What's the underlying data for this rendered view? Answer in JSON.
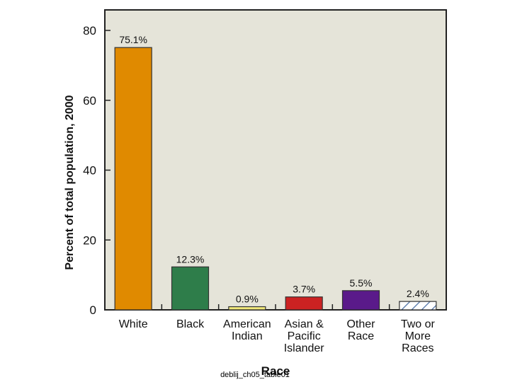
{
  "slide": {
    "caption": "deblij_ch05_table01"
  },
  "chart_data": {
    "type": "bar",
    "title": "",
    "xlabel": "Race",
    "ylabel": "Percent of total population, 2000",
    "ylim": [
      0,
      80
    ],
    "yticks": [
      0,
      20,
      40,
      60,
      80
    ],
    "grid": false,
    "plot_background": "#e5e4d9",
    "categories": [
      [
        "White"
      ],
      [
        "Black"
      ],
      [
        "American",
        "Indian"
      ],
      [
        "Asian &",
        "Pacific",
        "Islander"
      ],
      [
        "Other",
        "Race"
      ],
      [
        "Two or",
        "More",
        "Races"
      ]
    ],
    "values": [
      75.1,
      12.3,
      0.9,
      3.7,
      5.5,
      2.4
    ],
    "value_labels": [
      "75.1%",
      "12.3%",
      "0.9%",
      "3.7%",
      "5.5%",
      "2.4%"
    ],
    "colors": [
      "#e08a00",
      "#2e7d4a",
      "#f0e87a",
      "#cc2222",
      "#5a1a8a",
      "#ffffff"
    ],
    "patterns": [
      "none",
      "none",
      "none",
      "none",
      "none",
      "hatch"
    ]
  }
}
